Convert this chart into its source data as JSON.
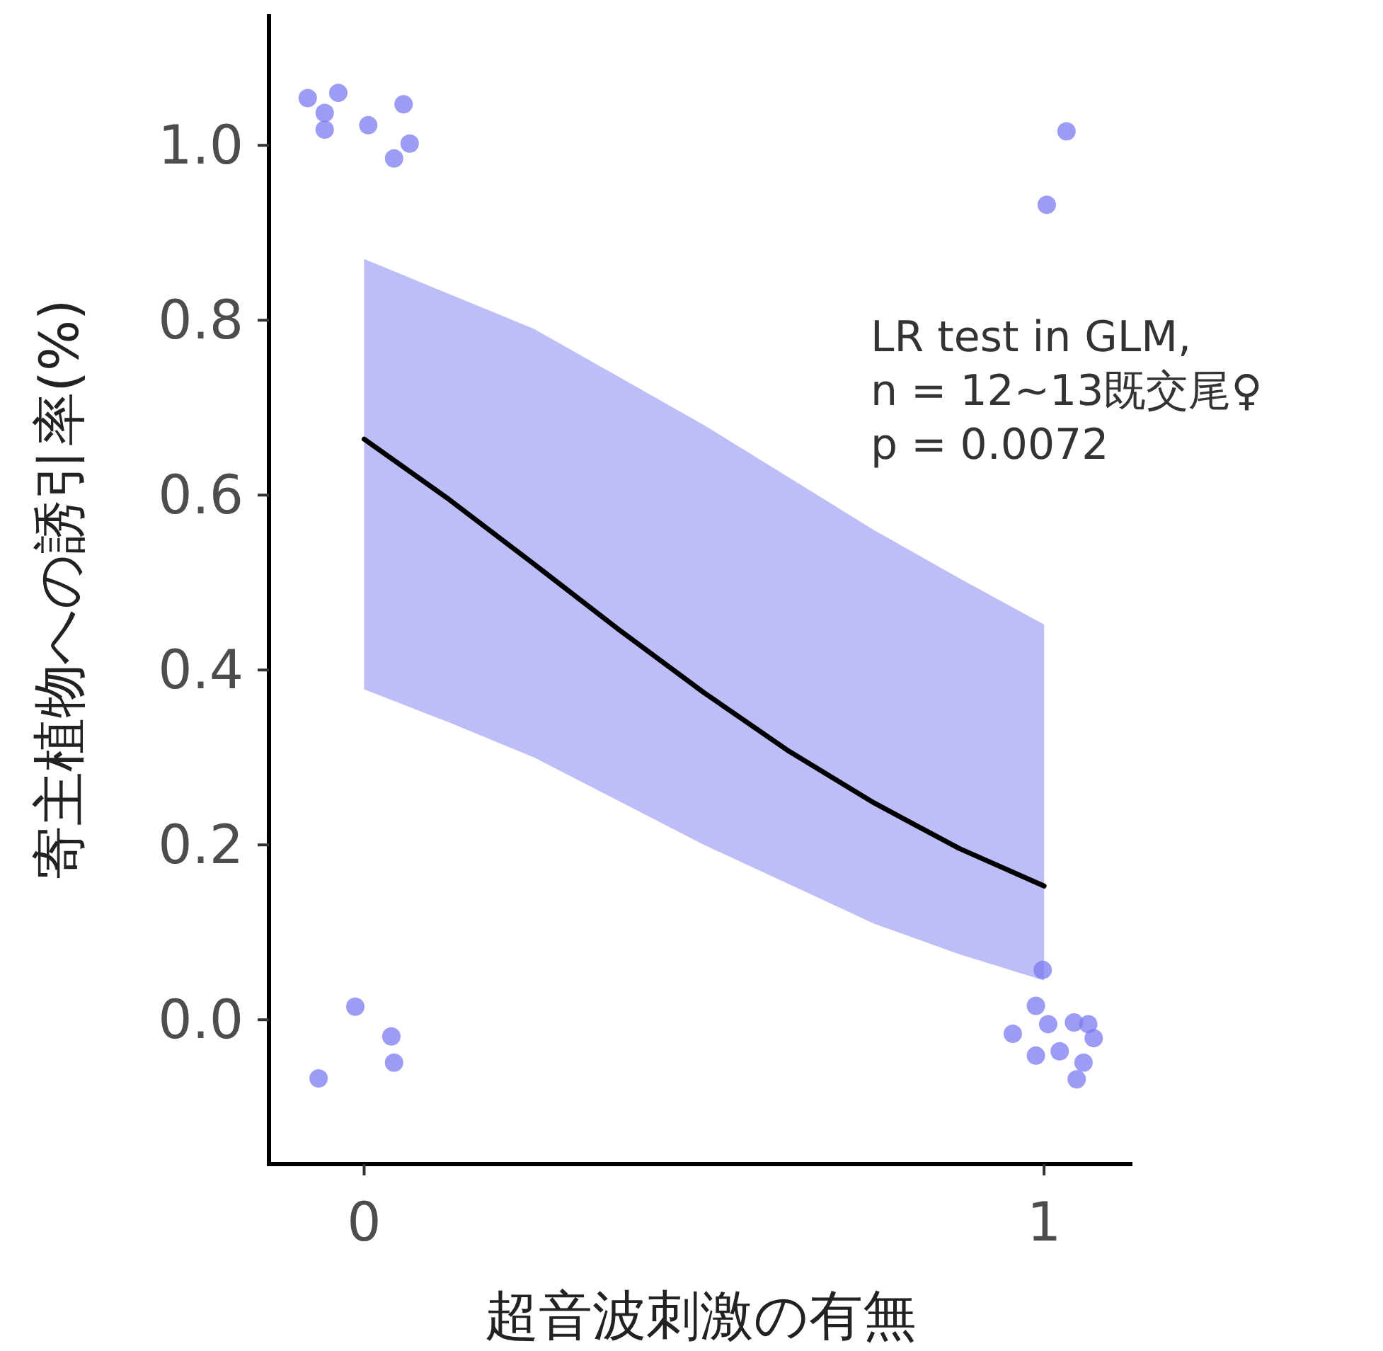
{
  "chart_data": {
    "type": "scatter",
    "xlabel": "超音波刺激の有無",
    "ylabel": "寄主植物への誘引率(%)",
    "annotations": [
      "LR test in GLM,\nn = 12~13既交尾♀\np = 0.0072"
    ],
    "xlim": [
      -0.14,
      1.13
    ],
    "ylim": [
      -0.165,
      1.15
    ],
    "xticks": [
      0,
      1
    ],
    "yticks": [
      {
        "value": 0,
        "label": "0.0"
      },
      0.2,
      0.4,
      0.6,
      0.8,
      {
        "value": 1,
        "label": "1.0"
      }
    ],
    "grid": false,
    "series": [
      {
        "type": "scatter",
        "color": "#7b7bf0",
        "marker": "circle",
        "x": [
          -0.083,
          -0.038,
          -0.058,
          -0.058,
          0.006,
          0.058,
          0.067,
          0.044,
          1.033,
          1.004,
          -0.013,
          0.04,
          0.044,
          -0.067,
          0.998,
          0.988,
          1.006,
          0.954,
          1.044,
          1.065,
          1.073,
          0.988,
          1.023,
          1.058,
          1.048
        ],
        "values": [
          1.054,
          1.06,
          1.037,
          1.018,
          1.023,
          1.047,
          1.002,
          0.985,
          1.016,
          0.932,
          0.015,
          -0.019,
          -0.049,
          -0.067,
          0.057,
          0.016,
          -0.005,
          -0.016,
          -0.003,
          -0.005,
          -0.021,
          -0.041,
          -0.036,
          -0.049,
          -0.068
        ]
      },
      {
        "type": "line",
        "color": "#000000",
        "line_style": "solid",
        "x": [
          0,
          0.125,
          0.25,
          0.375,
          0.5,
          0.625,
          0.75,
          0.875,
          1
        ],
        "values": [
          0.664,
          0.595,
          0.521,
          0.446,
          0.374,
          0.307,
          0.248,
          0.196,
          0.153
        ],
        "upper": [
          0.87,
          0.83,
          0.79,
          0.735,
          0.68,
          0.62,
          0.56,
          0.505,
          0.452
        ],
        "lower": [
          0.378,
          0.34,
          0.3,
          0.25,
          0.2,
          0.155,
          0.11,
          0.075,
          0.045
        ]
      }
    ]
  }
}
